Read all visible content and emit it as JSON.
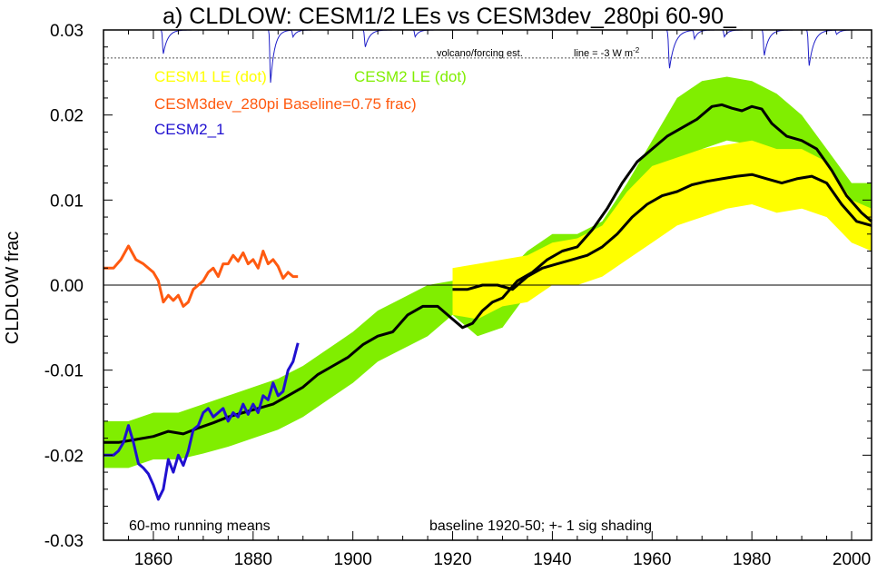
{
  "chart_data": {
    "type": "line",
    "title": "a) CLDLOW: CESM1/2 LEs vs CESM3dev_280pi 60-90_",
    "ylabel": "CLDLOW frac",
    "xlim": [
      1850,
      2004
    ],
    "ylim": [
      -0.03,
      0.03
    ],
    "x_ticks": [
      1860,
      1880,
      1900,
      1920,
      1940,
      1960,
      1980,
      2000
    ],
    "y_ticks": [
      -0.03,
      -0.02,
      -0.01,
      0.0,
      0.01,
      0.02,
      0.03
    ],
    "y_tick_labels": [
      "-0.03",
      "-0.02",
      "-0.01",
      "0.00",
      "0.01",
      "0.02",
      "0.03"
    ],
    "legend": {
      "cesm1": "CESM1 LE (dot)",
      "cesm2": "CESM2 LE (dot)",
      "cesm3": "CESM3dev_280pi Baseline=0.75 frac)",
      "cesm2_1": "CESM2_1"
    },
    "annotations": {
      "volcano": "volcano/forcing est.",
      "line_label": "line = -3 W m",
      "line_sup": "-2",
      "running": "60-mo running means",
      "baseline": "baseline 1920-50; +- 1 sig shading"
    },
    "colors": {
      "cesm1_band": "#ffff00",
      "cesm2_band": "#80ee00",
      "cesm3_line": "#ff5a10",
      "cesm2_1_line": "#2010d0",
      "volcano_line": "#1e1ec8",
      "mean_line": "#000000"
    },
    "series": [
      {
        "name": "CESM2 LE (dot)",
        "kind": "band",
        "x": [
          1850,
          1855,
          1860,
          1865,
          1870,
          1875,
          1880,
          1885,
          1890,
          1895,
          1900,
          1905,
          1910,
          1915,
          1920,
          1925,
          1930,
          1935,
          1940,
          1945,
          1950,
          1955,
          1960,
          1965,
          1970,
          1975,
          1980,
          1985,
          1990,
          1995,
          2000,
          2004
        ],
        "lower": [
          -0.0215,
          -0.0215,
          -0.0205,
          -0.0205,
          -0.0198,
          -0.019,
          -0.018,
          -0.017,
          -0.0155,
          -0.0135,
          -0.0115,
          -0.009,
          -0.0075,
          -0.006,
          -0.0035,
          -0.006,
          -0.005,
          -0.001,
          0.0005,
          0.001,
          0.002,
          0.005,
          0.008,
          0.012,
          0.016,
          0.017,
          0.0165,
          0.015,
          0.0135,
          0.011,
          0.006,
          0.006
        ],
        "upper": [
          -0.016,
          -0.016,
          -0.015,
          -0.015,
          -0.014,
          -0.013,
          -0.012,
          -0.011,
          -0.0095,
          -0.0075,
          -0.0055,
          -0.003,
          -0.0015,
          0.0,
          0.0005,
          -0.0005,
          0.001,
          0.004,
          0.006,
          0.006,
          0.0075,
          0.012,
          0.017,
          0.022,
          0.024,
          0.0245,
          0.024,
          0.0225,
          0.02,
          0.016,
          0.012,
          0.012
        ]
      },
      {
        "name": "CESM1 LE (dot)",
        "kind": "band",
        "x": [
          1920,
          1925,
          1930,
          1935,
          1940,
          1945,
          1950,
          1955,
          1960,
          1965,
          1970,
          1975,
          1980,
          1985,
          1990,
          1995,
          2000,
          2004
        ],
        "lower": [
          -0.0035,
          -0.004,
          -0.0025,
          -0.002,
          0.0,
          0.0,
          0.001,
          0.003,
          0.005,
          0.007,
          0.008,
          0.009,
          0.0095,
          0.0085,
          0.009,
          0.008,
          0.005,
          0.004
        ],
        "upper": [
          0.002,
          0.0025,
          0.003,
          0.0035,
          0.005,
          0.0055,
          0.007,
          0.011,
          0.014,
          0.015,
          0.016,
          0.0165,
          0.017,
          0.016,
          0.016,
          0.0145,
          0.01,
          0.009
        ]
      },
      {
        "name": "CESM2 LE mean",
        "kind": "line",
        "x": [
          1850,
          1853,
          1856,
          1860,
          1863,
          1866,
          1869,
          1872,
          1875,
          1878,
          1881,
          1884,
          1887,
          1890,
          1893,
          1896,
          1899,
          1902,
          1905,
          1908,
          1911,
          1914,
          1917,
          1920,
          1922,
          1924,
          1926,
          1928,
          1930,
          1933,
          1936,
          1939,
          1942,
          1945,
          1948,
          1951,
          1954,
          1957,
          1960,
          1963,
          1966,
          1969,
          1972,
          1974,
          1976,
          1978,
          1980,
          1982,
          1984,
          1987,
          1990,
          1993,
          1996,
          1999,
          2002,
          2004
        ],
        "y": [
          -0.0185,
          -0.0185,
          -0.0182,
          -0.0178,
          -0.0172,
          -0.0175,
          -0.0168,
          -0.0162,
          -0.0155,
          -0.015,
          -0.0145,
          -0.014,
          -0.013,
          -0.012,
          -0.0105,
          -0.0095,
          -0.0085,
          -0.007,
          -0.006,
          -0.0055,
          -0.0035,
          -0.0025,
          -0.0025,
          -0.004,
          -0.005,
          -0.0045,
          -0.003,
          -0.002,
          -0.0015,
          0.0005,
          0.0015,
          0.003,
          0.004,
          0.0045,
          0.0065,
          0.009,
          0.012,
          0.0145,
          0.016,
          0.0175,
          0.0185,
          0.0195,
          0.021,
          0.0212,
          0.0208,
          0.0205,
          0.021,
          0.0207,
          0.019,
          0.0175,
          0.017,
          0.016,
          0.0135,
          0.0105,
          0.0085,
          0.0075
        ]
      },
      {
        "name": "CESM1 LE mean",
        "kind": "line",
        "x": [
          1920,
          1923,
          1926,
          1929,
          1932,
          1935,
          1938,
          1941,
          1944,
          1947,
          1950,
          1953,
          1956,
          1959,
          1962,
          1965,
          1968,
          1971,
          1974,
          1977,
          1980,
          1983,
          1986,
          1989,
          1992,
          1995,
          1998,
          2001,
          2004
        ],
        "y": [
          -0.0005,
          -0.0005,
          0.0,
          0.0,
          -0.0005,
          0.001,
          0.002,
          0.0025,
          0.003,
          0.0035,
          0.0045,
          0.006,
          0.008,
          0.0095,
          0.0105,
          0.011,
          0.0118,
          0.0122,
          0.0125,
          0.0128,
          0.013,
          0.0125,
          0.012,
          0.0125,
          0.0128,
          0.012,
          0.0095,
          0.0075,
          0.007
        ]
      },
      {
        "name": "CESM3dev_280pi Baseline=0.75 frac)",
        "kind": "line",
        "x": [
          1850,
          1852,
          1853.5,
          1855,
          1856.5,
          1858,
          1860,
          1861,
          1862,
          1863,
          1864,
          1865,
          1866,
          1867,
          1868,
          1869,
          1870,
          1871,
          1872,
          1873,
          1874,
          1875,
          1876,
          1877,
          1878,
          1879,
          1880,
          1881,
          1882,
          1883,
          1884,
          1885,
          1886,
          1887,
          1888,
          1889
        ],
        "y": [
          0.002,
          0.002,
          0.003,
          0.0046,
          0.003,
          0.0025,
          0.0015,
          0.0005,
          -0.002,
          -0.0012,
          -0.0018,
          -0.0012,
          -0.0025,
          -0.002,
          -0.0005,
          0.0,
          0.0005,
          0.0015,
          0.002,
          0.001,
          0.0025,
          0.0025,
          0.0035,
          0.0028,
          0.0038,
          0.0025,
          0.003,
          0.002,
          0.004,
          0.0025,
          0.003,
          0.0022,
          0.0008,
          0.0015,
          0.001,
          0.001
        ]
      },
      {
        "name": "CESM2_1",
        "kind": "line",
        "x": [
          1850,
          1852,
          1853,
          1854,
          1855,
          1856,
          1857,
          1858,
          1859,
          1860,
          1861,
          1862,
          1863,
          1864,
          1865,
          1866,
          1867,
          1868,
          1869,
          1870,
          1871,
          1872,
          1873,
          1874,
          1875,
          1876,
          1877,
          1878,
          1879,
          1880,
          1881,
          1882,
          1883,
          1884,
          1885,
          1886,
          1887,
          1888,
          1889
        ],
        "y": [
          -0.02,
          -0.02,
          -0.0195,
          -0.0185,
          -0.0165,
          -0.0185,
          -0.021,
          -0.0215,
          -0.0222,
          -0.0235,
          -0.0252,
          -0.024,
          -0.0205,
          -0.022,
          -0.02,
          -0.0212,
          -0.0195,
          -0.017,
          -0.0165,
          -0.015,
          -0.0145,
          -0.0155,
          -0.015,
          -0.0145,
          -0.016,
          -0.015,
          -0.0155,
          -0.014,
          -0.0152,
          -0.014,
          -0.015,
          -0.013,
          -0.0135,
          -0.0115,
          -0.013,
          -0.0125,
          -0.01,
          -0.009,
          -0.0068
        ]
      },
      {
        "name": "volcano/forcing est.",
        "kind": "volcano",
        "baseline": 0.03,
        "scale_line": 0.0267,
        "dips": [
          {
            "x": 1862,
            "depth": 0.0028,
            "w": 1.0
          },
          {
            "x": 1883.5,
            "depth": 0.0062,
            "w": 0.9
          },
          {
            "x": 1888,
            "depth": 0.0008,
            "w": 0.8
          },
          {
            "x": 1902.5,
            "depth": 0.002,
            "w": 1.0
          },
          {
            "x": 1912.5,
            "depth": 0.0008,
            "w": 0.8
          },
          {
            "x": 1963.5,
            "depth": 0.0045,
            "w": 1.2
          },
          {
            "x": 1968.5,
            "depth": 0.001,
            "w": 0.8
          },
          {
            "x": 1974.5,
            "depth": 0.0008,
            "w": 0.8
          },
          {
            "x": 1982.5,
            "depth": 0.003,
            "w": 1.0
          },
          {
            "x": 1991.5,
            "depth": 0.0042,
            "w": 1.1
          },
          {
            "x": 1997,
            "depth": 0.0005,
            "w": 0.8
          }
        ]
      }
    ]
  }
}
